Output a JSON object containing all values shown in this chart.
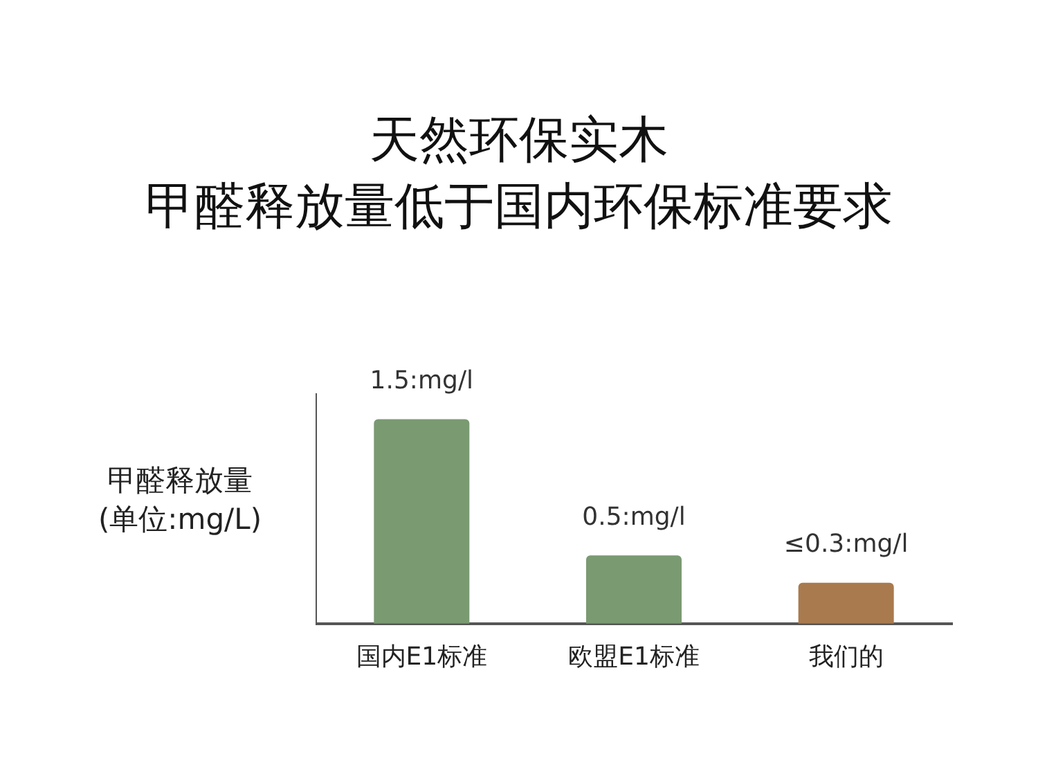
{
  "chart_data": {
    "type": "bar",
    "title": "天然环保实木",
    "subtitle": "甲醛释放量低于国内环保标准要求",
    "ylabel": "甲醛释放量\n(单位:mg/L)",
    "categories": [
      "国内E1标准",
      "欧盟E1标准",
      "我们的"
    ],
    "values": [
      1.5,
      0.5,
      0.3
    ],
    "colors": [
      "#7a9a72",
      "#7a9a72",
      "#a97a4e"
    ],
    "value_labels": [
      "1.5:mg/l",
      "0.5:mg/l",
      "≤0.3:mg/l"
    ],
    "grid": false
  }
}
